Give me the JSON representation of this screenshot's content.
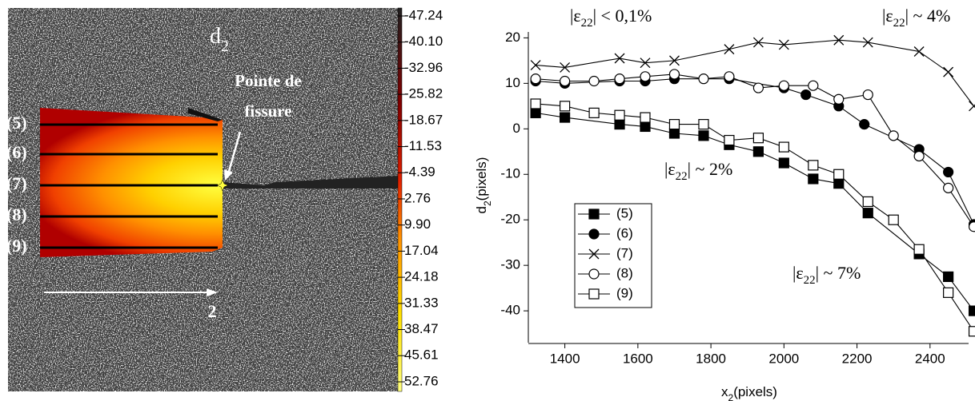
{
  "chart_data": [
    {
      "type": "image",
      "title": [
        "d",
        "2"
      ],
      "annotation": [
        "Pointe de",
        "fissure"
      ],
      "row_labels": [
        "(5)",
        "(6)",
        "(7)",
        "(8)",
        "(9)"
      ],
      "axis_label": "2",
      "colorbar": {
        "ticks": [
          {
            "value": -47.24,
            "label": "-47.24"
          },
          {
            "value": -40.1,
            "label": "-40.10"
          },
          {
            "value": -32.96,
            "label": "-32.96"
          },
          {
            "value": -25.82,
            "label": "-25.82"
          },
          {
            "value": -18.67,
            "label": "-18.67"
          },
          {
            "value": -11.53,
            "label": "-11.53"
          },
          {
            "value": -4.39,
            "label": "-4.39"
          },
          {
            "value": 2.76,
            "label": "2.76"
          },
          {
            "value": 9.9,
            "label": "9.90"
          },
          {
            "value": 17.04,
            "label": "17.04"
          },
          {
            "value": 24.18,
            "label": "24.18"
          },
          {
            "value": 31.33,
            "label": "31.33"
          },
          {
            "value": 38.47,
            "label": "38.47"
          },
          {
            "value": 45.61,
            "label": "45.61"
          },
          {
            "value": 52.76,
            "label": "52.76"
          }
        ]
      }
    },
    {
      "type": "line",
      "x_label": [
        "x",
        "2",
        "(pixels)"
      ],
      "y_label": [
        "d",
        "2",
        "(pixels)"
      ],
      "xlim": [
        1300,
        2510
      ],
      "ylim": [
        -47,
        22
      ],
      "xticks": [
        1400,
        1600,
        1800,
        2000,
        2200,
        2400
      ],
      "yticks": [
        -40,
        -30,
        -20,
        -10,
        0,
        10,
        20
      ],
      "annotations": [
        {
          "parts": [
            "|ε",
            "22",
            "|  < 0,1%"
          ]
        },
        {
          "parts": [
            "|ε",
            "22",
            "| ~ 4%"
          ]
        },
        {
          "parts": [
            "|ε",
            "22",
            "| ~ 2%"
          ]
        },
        {
          "parts": [
            "|ε",
            "22",
            "| ~ 7%"
          ]
        }
      ],
      "series": [
        {
          "name": "(5)",
          "color": "#000000",
          "marker": "filled-square",
          "x": [
            1320,
            1400,
            1550,
            1620,
            1700,
            1780,
            1850,
            1930,
            2000,
            2080,
            2150,
            2230,
            2370,
            2450,
            2520
          ],
          "y": [
            3.5,
            2.5,
            1,
            0.5,
            -1,
            -1.5,
            -3.5,
            -5,
            -7.5,
            -11,
            -12,
            -18.5,
            -27.5,
            -32.5,
            -40
          ]
        },
        {
          "name": "(6)",
          "color": "#000000",
          "marker": "filled-circle",
          "x": [
            1320,
            1400,
            1550,
            1620,
            1700,
            1850,
            2000,
            2060,
            2150,
            2220,
            2370,
            2450,
            2520
          ],
          "y": [
            10.5,
            10,
            10.5,
            10.5,
            11,
            11,
            9,
            7.5,
            5,
            1,
            -4.5,
            -9.5,
            -21
          ]
        },
        {
          "name": "(7)",
          "color": "#000000",
          "marker": "cross",
          "x": [
            1320,
            1400,
            1550,
            1620,
            1700,
            1850,
            1930,
            2000,
            2150,
            2230,
            2370,
            2450,
            2520
          ],
          "y": [
            14,
            13.5,
            15.5,
            14.5,
            15,
            17.5,
            19,
            18.5,
            19.5,
            19,
            17,
            12.5,
            5
          ]
        },
        {
          "name": "(8)",
          "color": "#000000",
          "marker": "open-circle",
          "x": [
            1320,
            1400,
            1480,
            1550,
            1620,
            1700,
            1780,
            1850,
            1930,
            2000,
            2080,
            2150,
            2230,
            2300,
            2370,
            2450,
            2520
          ],
          "y": [
            11,
            10.5,
            10.5,
            11,
            11.5,
            12,
            11,
            11.5,
            9,
            9.5,
            9.5,
            6.5,
            7.5,
            -1.5,
            -6,
            -13,
            -21.5
          ]
        },
        {
          "name": "(9)",
          "color": "#000000",
          "marker": "open-square",
          "x": [
            1320,
            1400,
            1480,
            1550,
            1620,
            1700,
            1780,
            1850,
            1930,
            2000,
            2080,
            2150,
            2230,
            2300,
            2370,
            2450,
            2520
          ],
          "y": [
            5.5,
            5,
            3.5,
            3,
            2.5,
            1,
            1,
            -2.5,
            -2,
            -4,
            -8,
            -10,
            -16,
            -20,
            -26.5,
            -36,
            -44.5
          ]
        }
      ]
    }
  ]
}
